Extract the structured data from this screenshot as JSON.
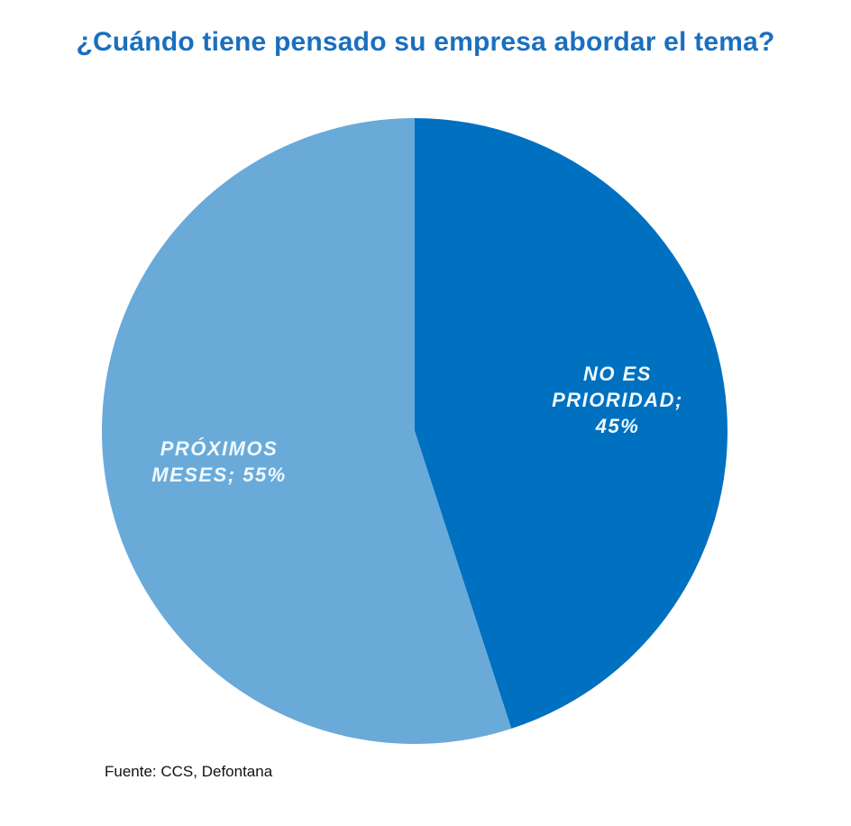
{
  "chart_data": {
    "type": "pie",
    "title": "¿Cuándo tiene pensado su empresa abordar el tema?",
    "slices": [
      {
        "label_lines": [
          "NO ES",
          "PRIORIDAD;",
          "45%"
        ],
        "label": "NO ES PRIORIDAD",
        "value": 45,
        "color": "#0070C0"
      },
      {
        "label_lines": [
          "PRÓXIMOS",
          "MESES; 55%"
        ],
        "label": "PRÓXIMOS MESES",
        "value": 55,
        "color": "#6AAAD9"
      }
    ],
    "start_angle_deg": 0,
    "direction": "clockwise"
  },
  "source": "Fuente: CCS, Defontana"
}
